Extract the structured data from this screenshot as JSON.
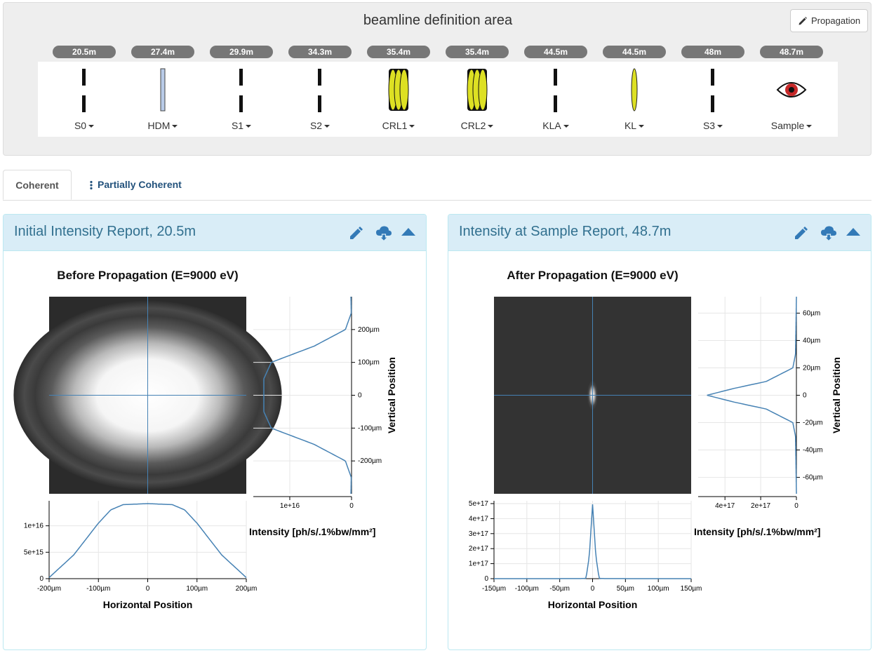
{
  "beamline": {
    "title": "beamline definition area",
    "propagation_button": "Propagation",
    "elements": [
      {
        "position": "20.5m",
        "label": "S0",
        "type": "aperture"
      },
      {
        "position": "27.4m",
        "label": "HDM",
        "type": "mirror"
      },
      {
        "position": "29.9m",
        "label": "S1",
        "type": "aperture"
      },
      {
        "position": "34.3m",
        "label": "S2",
        "type": "aperture"
      },
      {
        "position": "35.4m",
        "label": "CRL1",
        "type": "crl"
      },
      {
        "position": "35.4m",
        "label": "CRL2",
        "type": "crl"
      },
      {
        "position": "44.5m",
        "label": "KLA",
        "type": "aperture"
      },
      {
        "position": "44.5m",
        "label": "KL",
        "type": "lens"
      },
      {
        "position": "48m",
        "label": "S3",
        "type": "aperture"
      },
      {
        "position": "48.7m",
        "label": "Sample",
        "type": "watch"
      }
    ]
  },
  "tabs": [
    {
      "label": "Coherent",
      "active": true
    },
    {
      "label": "Partially Coherent",
      "active": false
    }
  ],
  "panels": [
    {
      "title": "Initial Intensity Report, 20.5m",
      "plot_title": "Before Propagation (E=9000 eV)",
      "xlabel": "Horizontal Position",
      "ylabel": "Vertical Position",
      "intensity_label": "Intensity [ph/s/.1%bw/mm²]",
      "x_ticks": [
        "-200µm",
        "-100µm",
        "0",
        "100µm",
        "200µm"
      ],
      "y_ticks": [
        "-200µm",
        "-100µm",
        "0",
        "100µm",
        "200µm"
      ],
      "h_intensity_ticks": [
        "0",
        "5e+15",
        "1e+16"
      ],
      "v_intensity_ticks": [
        "1e+16",
        "0"
      ]
    },
    {
      "title": "Intensity at Sample Report, 48.7m",
      "plot_title": "After Propagation (E=9000 eV)",
      "xlabel": "Horizontal Position",
      "ylabel": "Vertical Position",
      "intensity_label": "Intensity [ph/s/.1%bw/mm²]",
      "x_ticks": [
        "-150µm",
        "-100µm",
        "-50µm",
        "0",
        "50µm",
        "100µm",
        "150µm"
      ],
      "y_ticks": [
        "-60µm",
        "-40µm",
        "-20µm",
        "0",
        "20µm",
        "40µm",
        "60µm"
      ],
      "h_intensity_ticks": [
        "0",
        "1e+17",
        "2e+17",
        "3e+17",
        "4e+17",
        "5e+17"
      ],
      "v_intensity_ticks": [
        "4e+17",
        "2e+17",
        "0"
      ]
    }
  ],
  "chart_data": [
    {
      "type": "heatmap",
      "title": "Before Propagation (E=9000 eV)",
      "xlabel": "Horizontal Position",
      "ylabel": "Vertical Position",
      "xlim": [
        -200,
        200
      ],
      "ylim": [
        -300,
        300
      ],
      "units": "µm",
      "horizontal_cut": {
        "x": [
          -200,
          -150,
          -100,
          -75,
          -50,
          0,
          50,
          75,
          100,
          150,
          200
        ],
        "y": [
          200000000000000.0,
          4500000000000000.0,
          1.05e+16,
          1.3e+16,
          1.4e+16,
          1.42e+16,
          1.4e+16,
          1.3e+16,
          1.05e+16,
          4500000000000000.0,
          200000000000000.0
        ]
      },
      "vertical_cut": {
        "y": [
          -300,
          -250,
          -200,
          -150,
          -100,
          -50,
          0,
          50,
          100,
          150,
          200,
          250,
          300
        ],
        "x": [
          100000000000000.0,
          50000000000000.0,
          1000000000000000.0,
          6000000000000000.0,
          1.3e+16,
          1.42e+16,
          1.42e+16,
          1.42e+16,
          1.3e+16,
          6000000000000000.0,
          1000000000000000.0,
          50000000000000.0,
          100000000000000.0
        ]
      }
    },
    {
      "type": "heatmap",
      "title": "After Propagation (E=9000 eV)",
      "xlabel": "Horizontal Position",
      "ylabel": "Vertical Position",
      "xlim": [
        -150,
        150
      ],
      "ylim": [
        -72,
        72
      ],
      "units": "µm",
      "horizontal_cut": {
        "x": [
          -150,
          -20,
          -10,
          -5,
          0,
          5,
          10,
          20,
          150
        ],
        "y": [
          0,
          300000000000000.0,
          2000000000000000.0,
          1.5e+17,
          4.95e+17,
          1.5e+17,
          2000000000000000.0,
          300000000000000.0,
          0
        ]
      },
      "vertical_cut": {
        "y": [
          -72,
          -30,
          -20,
          -10,
          -5,
          0,
          5,
          10,
          20,
          30,
          72
        ],
        "x": [
          0,
          5000000000000000.0,
          2e+16,
          1.7e+17,
          3.5e+17,
          5e+17,
          3.5e+17,
          1.7e+17,
          2e+16,
          5000000000000000.0,
          0
        ]
      }
    }
  ]
}
